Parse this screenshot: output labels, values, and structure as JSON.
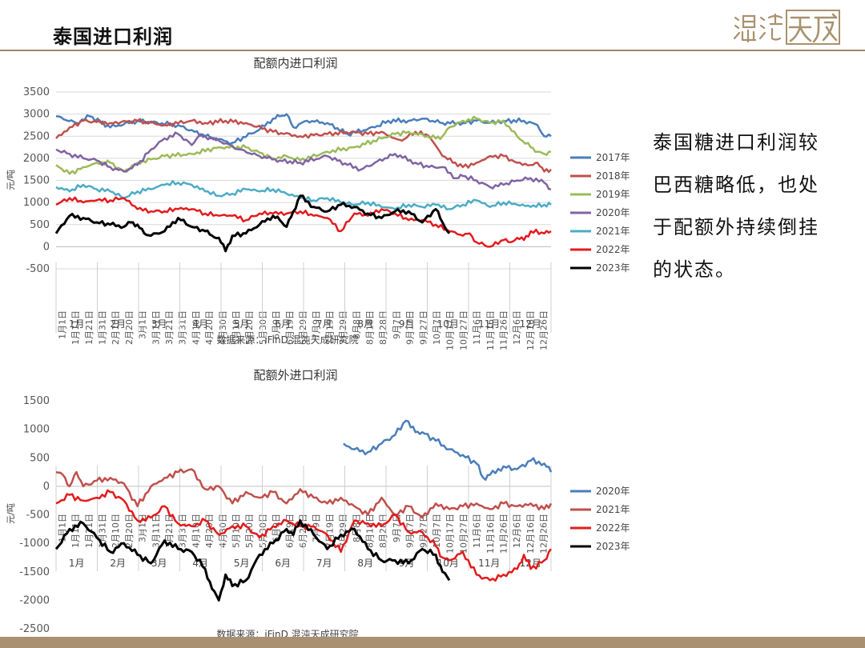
{
  "page": {
    "title": "泰国进口利润",
    "side_text": "泰国糖进口利润较巴西糖略低，也处于配额外持续倒挂的状态。",
    "logo_text": "混沌天成"
  },
  "chart_data": [
    {
      "id": "top",
      "type": "line",
      "title": "配额内进口利润",
      "ylabel": "元/吨",
      "ylim": [
        -500,
        3500
      ],
      "yticks": [
        -500,
        0,
        500,
        1000,
        1500,
        2000,
        2500,
        3000,
        3500
      ],
      "grid": true,
      "legend_position": "right",
      "source": "数据来源：iFinD 混沌天成研究院",
      "x_tick_labels": [
        "1月1日",
        "1月11日",
        "1月21日",
        "1月31日",
        "2月10日",
        "2月20日",
        "3月1日",
        "3月11日",
        "3月21日",
        "3月31日",
        "4月10日",
        "4月20日",
        "4月30日",
        "5月10日",
        "5月20日",
        "5月30日",
        "6月9日",
        "6月19日",
        "6月29日",
        "7月9日",
        "7月19日",
        "7月29日",
        "8月8日",
        "8月18日",
        "8月28日",
        "9月7日",
        "9月17日",
        "9月27日",
        "10月7日",
        "10月17日",
        "10月27日",
        "11月6日",
        "11月16日",
        "11月26日",
        "12月6日",
        "12月16日",
        "12月26日"
      ],
      "months": [
        "1月",
        "2月",
        "3月",
        "4月",
        "5月",
        "6月",
        "7月",
        "8月",
        "9月",
        "10月",
        "11月",
        "12月"
      ],
      "x_domain": [
        0,
        365
      ],
      "series": [
        {
          "name": "2017年",
          "color": "#4a7ebb",
          "width": 2.5,
          "x": [
            0,
            15,
            25,
            40,
            60,
            90,
            110,
            130,
            150,
            160,
            165,
            170,
            175,
            185,
            200,
            215,
            235,
            245,
            260,
            270,
            285,
            300,
            310,
            320,
            330,
            345,
            355,
            360,
            365
          ],
          "y": [
            2950,
            2800,
            2950,
            2700,
            2850,
            2750,
            2500,
            2350,
            2650,
            2900,
            2950,
            3000,
            2700,
            2850,
            2800,
            2550,
            2700,
            2850,
            2850,
            2900,
            2800,
            2800,
            2850,
            2800,
            2850,
            2850,
            2750,
            2500,
            2500
          ]
        },
        {
          "name": "2018年",
          "color": "#c0504d",
          "width": 2.5,
          "x": [
            0,
            10,
            20,
            40,
            60,
            80,
            100,
            110,
            125,
            140,
            160,
            180,
            200,
            220,
            230,
            240,
            250,
            255,
            265,
            275,
            285,
            300,
            310,
            320,
            330,
            340,
            350,
            355,
            360,
            365
          ],
          "y": [
            2450,
            2700,
            2850,
            2800,
            2850,
            2750,
            2850,
            2800,
            2850,
            2800,
            2600,
            2500,
            2550,
            2600,
            2550,
            2600,
            2450,
            2400,
            2600,
            2500,
            2050,
            1800,
            1900,
            2050,
            2050,
            1900,
            1850,
            1900,
            1700,
            1750
          ]
        },
        {
          "name": "2019年",
          "color": "#9bbb59",
          "width": 2.5,
          "x": [
            0,
            10,
            20,
            30,
            40,
            50,
            60,
            80,
            100,
            120,
            140,
            160,
            170,
            180,
            200,
            220,
            240,
            250,
            260,
            280,
            285,
            290,
            300,
            310,
            320,
            330,
            340,
            350,
            355,
            360,
            365
          ],
          "y": [
            1850,
            1650,
            1800,
            1900,
            1900,
            1700,
            1900,
            2050,
            2100,
            2250,
            2250,
            2000,
            2050,
            1950,
            2150,
            2250,
            2450,
            2550,
            2600,
            2450,
            2500,
            2700,
            2850,
            2900,
            2800,
            2850,
            2500,
            2250,
            2150,
            2100,
            2150
          ]
        },
        {
          "name": "2020年",
          "color": "#8064a2",
          "width": 2.5,
          "x": [
            0,
            10,
            20,
            30,
            40,
            50,
            60,
            70,
            80,
            90,
            100,
            105,
            110,
            120,
            135,
            150,
            165,
            180,
            200,
            215,
            225,
            235,
            250,
            265,
            275,
            285,
            295,
            300,
            310,
            320,
            330,
            340,
            350,
            360,
            365
          ],
          "y": [
            2200,
            2100,
            2000,
            1950,
            1800,
            1700,
            1850,
            2200,
            2450,
            2550,
            2300,
            2500,
            2500,
            2400,
            2200,
            2050,
            1950,
            1900,
            2050,
            1850,
            1750,
            1900,
            2100,
            1900,
            1800,
            1800,
            1550,
            1600,
            1500,
            1350,
            1400,
            1500,
            1550,
            1450,
            1300
          ]
        },
        {
          "name": "2021年",
          "color": "#4bacc6",
          "width": 2.5,
          "x": [
            0,
            10,
            20,
            30,
            40,
            50,
            60,
            70,
            80,
            90,
            100,
            110,
            120,
            130,
            140,
            150,
            160,
            170,
            180,
            190,
            200,
            210,
            220,
            230,
            240,
            250,
            260,
            270,
            280,
            290,
            300,
            310,
            320,
            330,
            340,
            350,
            360,
            365
          ],
          "y": [
            1350,
            1250,
            1400,
            1300,
            1250,
            1100,
            1250,
            1300,
            1400,
            1450,
            1400,
            1250,
            1150,
            1200,
            1300,
            1250,
            1300,
            1200,
            1100,
            1050,
            1100,
            1000,
            950,
            1000,
            900,
            850,
            950,
            900,
            950,
            850,
            950,
            1050,
            900,
            1000,
            950,
            900,
            950,
            950
          ]
        },
        {
          "name": "2022年",
          "color": "#e41a1c",
          "width": 2.5,
          "x": [
            0,
            10,
            20,
            30,
            40,
            50,
            60,
            70,
            80,
            90,
            100,
            110,
            120,
            130,
            140,
            150,
            160,
            170,
            180,
            190,
            200,
            210,
            220,
            230,
            240,
            250,
            260,
            270,
            280,
            290,
            300,
            305,
            310,
            320,
            330,
            335,
            340,
            345,
            350,
            360,
            365
          ],
          "y": [
            950,
            1100,
            1000,
            1050,
            1050,
            1100,
            850,
            800,
            800,
            850,
            850,
            750,
            700,
            700,
            600,
            750,
            750,
            750,
            800,
            700,
            650,
            350,
            750,
            700,
            850,
            750,
            600,
            600,
            500,
            350,
            250,
            300,
            100,
            0,
            150,
            100,
            200,
            150,
            350,
            300,
            350
          ]
        },
        {
          "name": "2023年",
          "color": "#000000",
          "width": 3,
          "x": [
            0,
            10,
            20,
            30,
            40,
            50,
            55,
            60,
            65,
            70,
            80,
            90,
            100,
            110,
            115,
            120,
            125,
            130,
            140,
            150,
            160,
            165,
            170,
            175,
            180,
            190,
            200,
            210,
            220,
            230,
            240,
            250,
            260,
            270,
            280,
            285,
            290
          ],
          "y": [
            300,
            700,
            650,
            550,
            500,
            450,
            550,
            500,
            300,
            250,
            350,
            650,
            450,
            350,
            250,
            200,
            -100,
            250,
            300,
            500,
            700,
            600,
            450,
            800,
            1150,
            900,
            800,
            950,
            900,
            750,
            650,
            800,
            800,
            550,
            850,
            550,
            300
          ]
        }
      ]
    },
    {
      "id": "bottom",
      "type": "line",
      "title": "配额外进口利润",
      "ylabel": "元/吨",
      "ylim": [
        -2500,
        1500
      ],
      "yticks": [
        -2500,
        -2000,
        -1500,
        -1000,
        -500,
        0,
        500,
        1000,
        1500
      ],
      "grid": false,
      "legend_position": "right",
      "source": "数据来源：iFinD 混沌天成研究院",
      "x_tick_labels": [
        "1月1日",
        "1月11日",
        "1月21日",
        "1月31日",
        "2月10日",
        "2月20日",
        "3月1日",
        "3月11日",
        "3月21日",
        "3月31日",
        "4月10日",
        "4月20日",
        "4月30日",
        "5月10日",
        "5月20日",
        "5月30日",
        "6月9日",
        "6月19日",
        "6月29日",
        "7月9日",
        "7月19日",
        "7月29日",
        "8月8日",
        "8月18日",
        "8月28日",
        "9月7日",
        "9月17日",
        "9月27日",
        "10月7日",
        "10月17日",
        "10月27日",
        "11月6日",
        "11月16日",
        "11月26日",
        "12月6日",
        "12月16日",
        "12月26日"
      ],
      "months": [
        "1月",
        "2月",
        "3月",
        "4月",
        "5月",
        "6月",
        "7月",
        "8月",
        "9月",
        "10月",
        "11月",
        "12月"
      ],
      "x_domain": [
        0,
        365
      ],
      "series": [
        {
          "name": "2020年",
          "color": "#4a7ebb",
          "width": 2.5,
          "x": [
            212,
            220,
            230,
            240,
            250,
            258,
            265,
            270,
            280,
            290,
            300,
            310,
            315,
            320,
            330,
            340,
            350,
            360,
            365
          ],
          "y": [
            750,
            650,
            600,
            750,
            900,
            1150,
            950,
            950,
            800,
            650,
            550,
            400,
            150,
            200,
            350,
            300,
            450,
            400,
            250
          ]
        },
        {
          "name": "2021年",
          "color": "#c0504d",
          "width": 2.5,
          "x": [
            0,
            5,
            10,
            15,
            20,
            30,
            40,
            50,
            60,
            70,
            80,
            90,
            100,
            110,
            120,
            130,
            140,
            150,
            160,
            170,
            180,
            190,
            200,
            210,
            220,
            230,
            240,
            250,
            260,
            270,
            280,
            290,
            300,
            310,
            320,
            330,
            340,
            350,
            360,
            365
          ],
          "y": [
            250,
            200,
            0,
            250,
            0,
            100,
            150,
            50,
            -350,
            0,
            150,
            250,
            300,
            -50,
            0,
            -300,
            -100,
            -200,
            -100,
            -300,
            -50,
            -200,
            -300,
            -200,
            -350,
            -500,
            -200,
            -500,
            -350,
            -550,
            -300,
            -400,
            -350,
            -300,
            -400,
            -300,
            -350,
            -300,
            -400,
            -300
          ]
        },
        {
          "name": "2022年",
          "color": "#e41a1c",
          "width": 2.5,
          "x": [
            0,
            10,
            20,
            30,
            40,
            50,
            60,
            70,
            80,
            90,
            100,
            110,
            120,
            130,
            140,
            150,
            160,
            170,
            180,
            190,
            200,
            210,
            220,
            230,
            240,
            250,
            260,
            270,
            280,
            285,
            290,
            300,
            310,
            320,
            330,
            340,
            345,
            350,
            360,
            365
          ],
          "y": [
            -300,
            -150,
            -250,
            -200,
            -100,
            -250,
            -600,
            -550,
            -350,
            -650,
            -700,
            -600,
            -850,
            -700,
            -700,
            -900,
            -700,
            -600,
            -700,
            -700,
            -850,
            -1150,
            -600,
            -650,
            -700,
            -500,
            -800,
            -800,
            -1050,
            -1250,
            -1300,
            -1150,
            -1550,
            -1650,
            -1550,
            -1450,
            -1200,
            -1450,
            -1300,
            -1100
          ]
        },
        {
          "name": "2023年",
          "color": "#000000",
          "width": 3,
          "x": [
            0,
            10,
            20,
            30,
            40,
            50,
            60,
            70,
            80,
            90,
            100,
            110,
            115,
            120,
            125,
            130,
            140,
            150,
            160,
            170,
            175,
            180,
            190,
            200,
            210,
            220,
            230,
            240,
            250,
            260,
            270,
            280,
            285,
            290
          ],
          "y": [
            -1100,
            -750,
            -650,
            -900,
            -1150,
            -1000,
            -1200,
            -1350,
            -950,
            -1100,
            -1150,
            -1450,
            -1800,
            -2000,
            -1550,
            -1750,
            -1650,
            -1200,
            -1000,
            -750,
            -850,
            -600,
            -850,
            -1100,
            -850,
            -750,
            -1100,
            -1300,
            -1300,
            -1350,
            -1100,
            -1200,
            -1500,
            -1650
          ]
        }
      ]
    }
  ]
}
